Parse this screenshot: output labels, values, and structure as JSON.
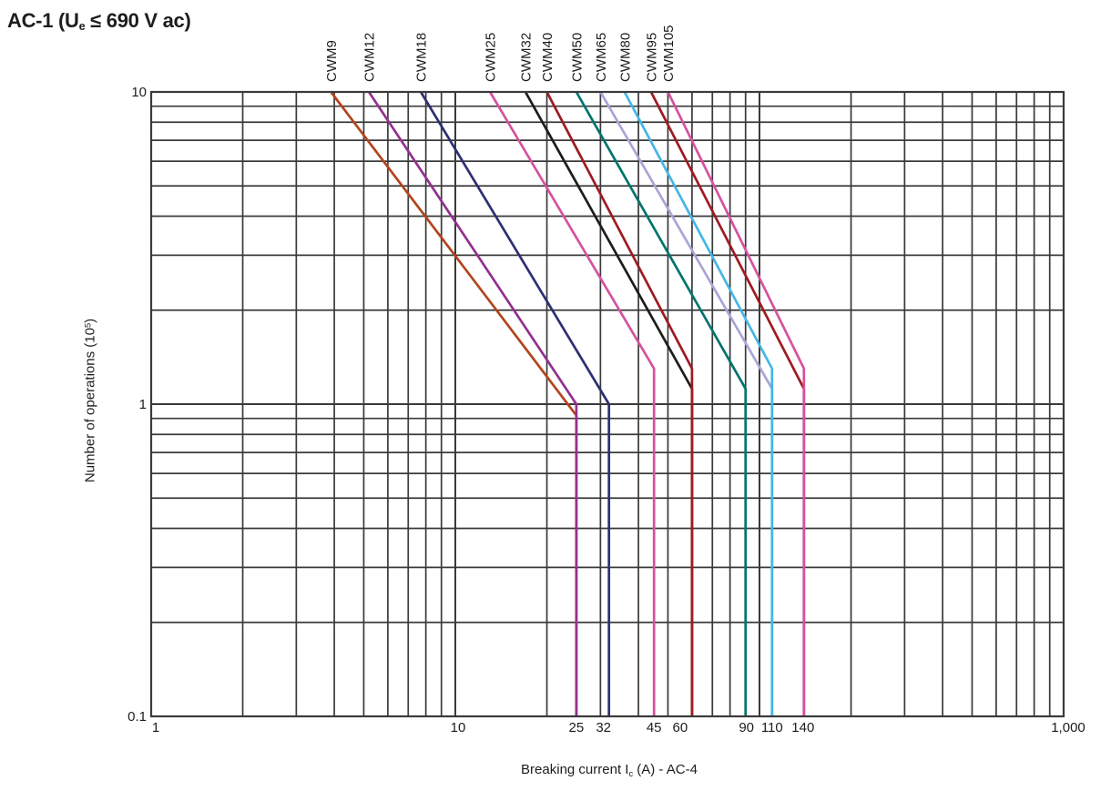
{
  "title": {
    "prefix": "AC-1 (U",
    "sub": "e",
    "suffix": " ≤ 690 V ac)"
  },
  "x_axis_label": {
    "prefix": "Breaking current I",
    "sub": "c",
    "suffix": " (A) - AC-4"
  },
  "y_axis_label": {
    "prefix": "Number of operations (10",
    "sup": "5",
    "suffix": ")"
  },
  "colors": {
    "background": "#ffffff",
    "grid": "#3a3a3a",
    "text": "#1d1d1b"
  },
  "chart_data": {
    "type": "line",
    "title": "AC-1 (Ue ≤ 690 V ac)",
    "xlabel": "Breaking current Ic (A) - AC-4",
    "ylabel": "Number of operations (10^5)",
    "x_scale": "log",
    "y_scale": "log",
    "xlim": [
      1,
      1000
    ],
    "ylim": [
      0.1,
      10
    ],
    "grid": "on",
    "x_ticks": [
      {
        "value": 1,
        "label": "1",
        "dx": 5
      },
      {
        "value": 10,
        "label": "10",
        "dx": 3
      },
      {
        "value": 25,
        "label": "25",
        "dx": 0
      },
      {
        "value": 32,
        "label": "32",
        "dx": -6
      },
      {
        "value": 45,
        "label": "45",
        "dx": 0
      },
      {
        "value": 60,
        "label": "60",
        "dx": -13
      },
      {
        "value": 90,
        "label": "90",
        "dx": 1
      },
      {
        "value": 110,
        "label": "110",
        "dx": 0
      },
      {
        "value": 140,
        "label": "140",
        "dx": -1
      },
      {
        "value": 1000,
        "label": "1,000",
        "dx": 5
      }
    ],
    "y_ticks": [
      {
        "value": 10,
        "label": "10"
      },
      {
        "value": 1,
        "label": "1"
      },
      {
        "value": 0.1,
        "label": "0.1"
      }
    ],
    "series_note": "Each series: diagonal from (x_start, 10×10^5 ops) down to bend point at rated AC-4 breaking current, then vertical drop to 0.1. Points are [breaking_current_A, operations_1e5].",
    "series": [
      {
        "name": "CWM9",
        "color": "#b2451e",
        "points": [
          [
            3.9,
            10
          ],
          [
            25,
            0.92
          ],
          [
            25,
            0.1
          ]
        ]
      },
      {
        "name": "CWM12",
        "color": "#943090",
        "points": [
          [
            5.2,
            10
          ],
          [
            25,
            1.0
          ],
          [
            25,
            0.1
          ]
        ]
      },
      {
        "name": "CWM18",
        "color": "#2e2f74",
        "points": [
          [
            7.7,
            10
          ],
          [
            32,
            1.0
          ],
          [
            32,
            0.1
          ]
        ]
      },
      {
        "name": "CWM25",
        "color": "#d6529e",
        "points": [
          [
            13,
            10
          ],
          [
            45,
            1.3
          ],
          [
            45,
            0.1
          ]
        ]
      },
      {
        "name": "CWM32",
        "color": "#1d1d1b",
        "points": [
          [
            17,
            10
          ],
          [
            60,
            1.12
          ],
          [
            60,
            0.1
          ]
        ]
      },
      {
        "name": "CWM40",
        "color": "#9e1b20",
        "points": [
          [
            20,
            10
          ],
          [
            60,
            1.3
          ],
          [
            60,
            0.1
          ]
        ]
      },
      {
        "name": "CWM50",
        "color": "#00756b",
        "points": [
          [
            25,
            10
          ],
          [
            90,
            1.12
          ],
          [
            90,
            0.1
          ]
        ]
      },
      {
        "name": "CWM65",
        "color": "#aaa5d5",
        "points": [
          [
            30,
            10
          ],
          [
            110,
            1.12
          ],
          [
            110,
            0.1
          ]
        ]
      },
      {
        "name": "CWM80",
        "color": "#45b6e8",
        "points": [
          [
            36,
            10
          ],
          [
            110,
            1.3
          ],
          [
            110,
            0.1
          ]
        ]
      },
      {
        "name": "CWM95",
        "color": "#9e1b20",
        "points": [
          [
            44,
            10
          ],
          [
            140,
            1.12
          ],
          [
            140,
            0.1
          ]
        ]
      },
      {
        "name": "CWM105",
        "color": "#d6529e",
        "points": [
          [
            50,
            10
          ],
          [
            140,
            1.3
          ],
          [
            140,
            0.1
          ]
        ]
      }
    ]
  }
}
